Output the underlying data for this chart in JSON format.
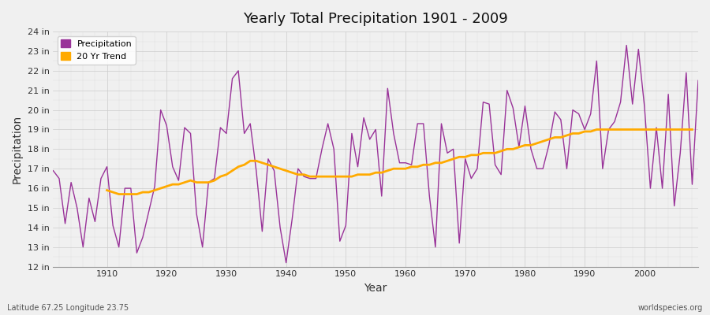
{
  "title": "Yearly Total Precipitation 1901 - 2009",
  "xlabel": "Year",
  "ylabel": "Precipitation",
  "subtitle_left": "Latitude 67.25 Longitude 23.75",
  "subtitle_right": "worldspecies.org",
  "bg_color": "#f0f0f0",
  "plot_bg_color": "#f0f0f0",
  "line_color": "#993399",
  "trend_color": "#ffaa00",
  "ylim": [
    12,
    24
  ],
  "yticks": [
    12,
    13,
    14,
    15,
    16,
    17,
    18,
    19,
    20,
    21,
    22,
    23,
    24
  ],
  "years": [
    1901,
    1902,
    1903,
    1904,
    1905,
    1906,
    1907,
    1908,
    1909,
    1910,
    1911,
    1912,
    1913,
    1914,
    1915,
    1916,
    1917,
    1918,
    1919,
    1920,
    1921,
    1922,
    1923,
    1924,
    1925,
    1926,
    1927,
    1928,
    1929,
    1930,
    1931,
    1932,
    1933,
    1934,
    1935,
    1936,
    1937,
    1938,
    1939,
    1940,
    1941,
    1942,
    1943,
    1944,
    1945,
    1946,
    1947,
    1948,
    1949,
    1950,
    1951,
    1952,
    1953,
    1954,
    1955,
    1956,
    1957,
    1958,
    1959,
    1960,
    1961,
    1962,
    1963,
    1964,
    1965,
    1966,
    1967,
    1968,
    1969,
    1970,
    1971,
    1972,
    1973,
    1974,
    1975,
    1976,
    1977,
    1978,
    1979,
    1980,
    1981,
    1982,
    1983,
    1984,
    1985,
    1986,
    1987,
    1988,
    1989,
    1990,
    1991,
    1992,
    1993,
    1994,
    1995,
    1996,
    1997,
    1998,
    1999,
    2000,
    2001,
    2002,
    2003,
    2004,
    2005,
    2006,
    2007,
    2008,
    2009
  ],
  "precip": [
    16.9,
    16.5,
    14.2,
    16.3,
    15.0,
    13.0,
    15.5,
    14.3,
    16.5,
    17.1,
    14.1,
    13.0,
    16.0,
    16.0,
    12.7,
    13.5,
    14.8,
    16.1,
    20.0,
    19.2,
    17.1,
    16.4,
    19.1,
    18.8,
    14.7,
    13.0,
    16.3,
    16.5,
    19.1,
    18.8,
    21.6,
    22.0,
    18.8,
    19.3,
    16.9,
    13.8,
    17.5,
    16.9,
    14.0,
    12.2,
    14.4,
    17.0,
    16.6,
    16.5,
    16.5,
    18.0,
    19.3,
    18.0,
    13.3,
    14.1,
    18.8,
    17.1,
    19.6,
    18.5,
    19.0,
    15.6,
    21.1,
    18.8,
    17.3,
    17.3,
    17.2,
    19.3,
    19.3,
    15.6,
    13.0,
    19.3,
    17.8,
    18.0,
    13.2,
    17.5,
    16.5,
    17.0,
    20.4,
    20.3,
    17.2,
    16.7,
    21.0,
    20.1,
    18.1,
    20.2,
    18.0,
    17.0,
    17.0,
    18.2,
    19.9,
    19.5,
    17.0,
    20.0,
    19.8,
    19.0,
    19.8,
    22.5,
    17.0,
    19.0,
    19.4,
    20.4,
    23.3,
    20.3,
    23.1,
    20.2,
    16.0,
    19.1,
    16.0,
    20.8,
    15.1,
    17.8,
    21.9,
    16.2,
    21.5
  ],
  "trend": [
    null,
    null,
    null,
    null,
    null,
    null,
    null,
    null,
    null,
    15.9,
    15.8,
    15.7,
    15.7,
    15.7,
    15.7,
    15.8,
    15.8,
    15.9,
    16.0,
    16.1,
    16.2,
    16.2,
    16.3,
    16.4,
    16.3,
    16.3,
    16.3,
    16.4,
    16.6,
    16.7,
    16.9,
    17.1,
    17.2,
    17.4,
    17.4,
    17.3,
    17.2,
    17.1,
    17.0,
    16.9,
    16.8,
    16.7,
    16.7,
    16.6,
    16.6,
    16.6,
    16.6,
    16.6,
    16.6,
    16.6,
    16.6,
    16.7,
    16.7,
    16.7,
    16.8,
    16.8,
    16.9,
    17.0,
    17.0,
    17.0,
    17.1,
    17.1,
    17.2,
    17.2,
    17.3,
    17.3,
    17.4,
    17.5,
    17.6,
    17.6,
    17.7,
    17.7,
    17.8,
    17.8,
    17.8,
    17.9,
    18.0,
    18.0,
    18.1,
    18.2,
    18.2,
    18.3,
    18.4,
    18.5,
    18.6,
    18.6,
    18.7,
    18.8,
    18.8,
    18.9,
    18.9,
    19.0,
    19.0,
    19.0,
    19.0,
    19.0,
    19.0,
    19.0,
    19.0,
    19.0,
    19.0,
    19.0,
    19.0,
    19.0,
    19.0,
    19.0,
    19.0,
    19.0
  ]
}
